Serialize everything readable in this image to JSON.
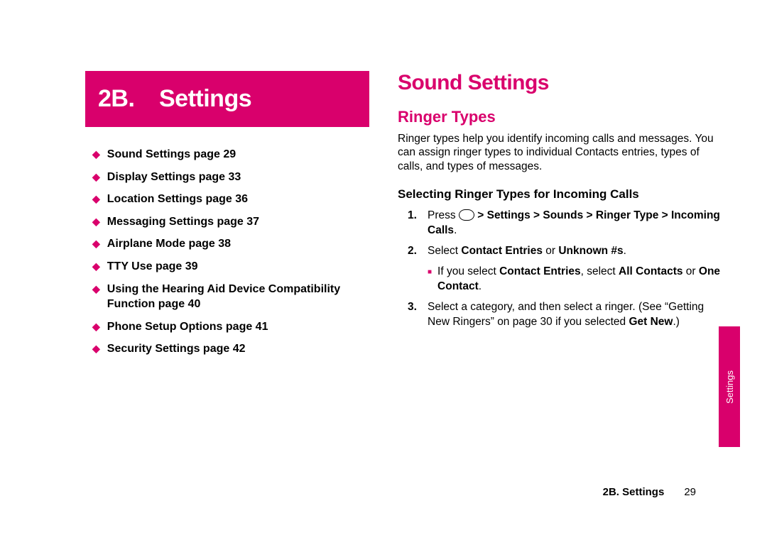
{
  "colors": {
    "accent": "#d9006c",
    "text": "#000000",
    "bg": "#ffffff"
  },
  "chapter": {
    "number": "2B.",
    "title": "Settings"
  },
  "toc": [
    "Sound Settings page 29",
    "Display Settings page 33",
    "Location Settings page 36",
    "Messaging Settings page 37",
    "Airplane Mode page 38",
    "TTY Use page 39",
    "Using the Hearing Aid Device Compatibility Function page 40",
    "Phone Setup Options page 41",
    "Security Settings page 42"
  ],
  "right": {
    "heading1": "Sound Settings",
    "heading2": "Ringer Types",
    "intro": "Ringer types help you identify incoming calls and messages. You can assign ringer types to individual Contacts entries, types of calls, and types of messages.",
    "heading3": "Selecting Ringer Types for Incoming Calls",
    "step1_prefix": "Press ",
    "step1_bold": " > Settings > Sounds > Ringer Type > Incoming Calls",
    "step1_suffix": ".",
    "step2_prefix": "Select ",
    "step2_bold1": "Contact Entries",
    "step2_mid": " or ",
    "step2_bold2": "Unknown #s",
    "step2_suffix": ".",
    "sub_prefix": "If you select ",
    "sub_b1": "Contact Entries",
    "sub_mid1": ", select ",
    "sub_b2": "All Contacts",
    "sub_mid2": " or ",
    "sub_b3": "One Contact",
    "sub_suffix": ".",
    "step3_text": "Select a category, and then select a ringer. (See “Getting New Ringers” on page 30 if you selected ",
    "step3_bold": "Get New",
    "step3_suffix": ".)"
  },
  "sideTab": "Settings",
  "footer": {
    "title": "2B. Settings",
    "page": "29"
  }
}
